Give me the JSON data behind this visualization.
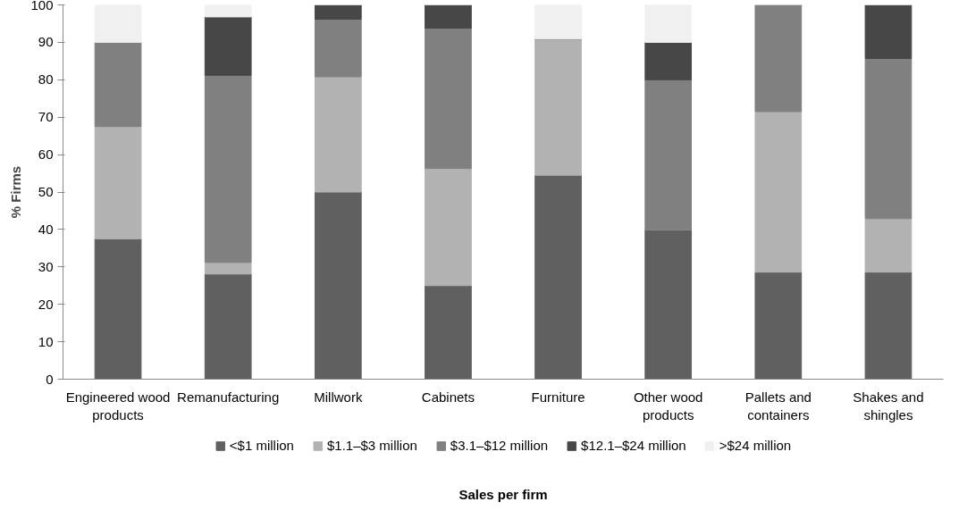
{
  "chart_data": {
    "type": "bar",
    "stacked": true,
    "ylabel": "% Firms",
    "xlabel": "Sales per firm",
    "categories": [
      "Engineered wood products",
      "Remanufacturing",
      "Millwork",
      "Cabinets",
      "Furniture",
      "Other wood products",
      "Pallets and containers",
      "Shakes and shingles"
    ],
    "series": [
      {
        "name": "<$1 million",
        "color": "#606060",
        "values": [
          37.5,
          28.1,
          50,
          25,
          54.5,
          40,
          28.6,
          28.6
        ]
      },
      {
        "name": "$1.1–$3 million",
        "color": "#b2b2b2",
        "values": [
          30,
          3.1,
          30.8,
          31.3,
          36.4,
          0,
          42.9,
          14.3
        ]
      },
      {
        "name": "$3.1–$12 million",
        "color": "#808080",
        "values": [
          22.5,
          50,
          15.4,
          37.5,
          0,
          40,
          28.5,
          42.8
        ]
      },
      {
        "name": "$12.1–$24 million",
        "color": "#474747",
        "values": [
          0,
          15.6,
          3.8,
          6.2,
          0,
          10,
          0,
          14.3
        ]
      },
      {
        "name": ">$24 million",
        "color": "#f0f0f0",
        "values": [
          10,
          3.2,
          0,
          0,
          9.1,
          10,
          0,
          0
        ]
      }
    ],
    "ylim": [
      0,
      100
    ],
    "yticks": [
      0,
      10,
      20,
      30,
      40,
      50,
      60,
      70,
      80,
      90,
      100
    ],
    "grid": false,
    "legend": "bottom"
  }
}
